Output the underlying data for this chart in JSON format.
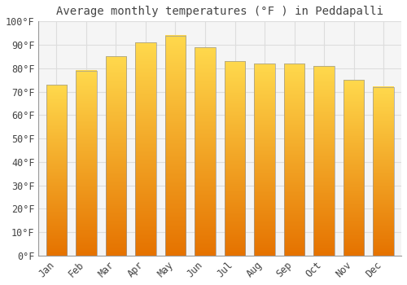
{
  "title": "Average monthly temperatures (°F ) in Peddapalli",
  "months": [
    "Jan",
    "Feb",
    "Mar",
    "Apr",
    "May",
    "Jun",
    "Jul",
    "Aug",
    "Sep",
    "Oct",
    "Nov",
    "Dec"
  ],
  "values": [
    73,
    79,
    85,
    91,
    94,
    89,
    83,
    82,
    82,
    81,
    75,
    72
  ],
  "bar_color": "#FFA500",
  "bar_edge_color": "#888888",
  "background_color": "#ffffff",
  "plot_bg_color": "#f5f5f5",
  "grid_color": "#dddddd",
  "text_color": "#444444",
  "ylim": [
    0,
    100
  ],
  "yticks": [
    0,
    10,
    20,
    30,
    40,
    50,
    60,
    70,
    80,
    90,
    100
  ],
  "ytick_labels": [
    "0°F",
    "10°F",
    "20°F",
    "30°F",
    "40°F",
    "50°F",
    "60°F",
    "70°F",
    "80°F",
    "90°F",
    "100°F"
  ],
  "title_fontsize": 10,
  "tick_fontsize": 8.5,
  "font_family": "monospace",
  "bar_bottom_color": "#E67E00",
  "bar_top_color": "#FFD966"
}
